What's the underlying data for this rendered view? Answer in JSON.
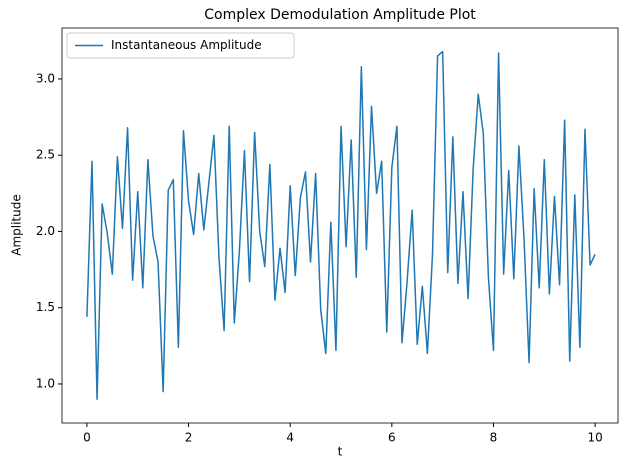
{
  "chart_data": {
    "type": "line",
    "title": "Complex Demodulation Amplitude Plot",
    "x_label": "t",
    "y_label": "Amplitude",
    "x": [
      0.0,
      0.1,
      0.2,
      0.3,
      0.4,
      0.5,
      0.6,
      0.7,
      0.8,
      0.9,
      1.0,
      1.1,
      1.2,
      1.3,
      1.4,
      1.5,
      1.6,
      1.7,
      1.8,
      1.9,
      2.0,
      2.1,
      2.2,
      2.3,
      2.4,
      2.5,
      2.6,
      2.7,
      2.8,
      2.9,
      3.0,
      3.1,
      3.2,
      3.3,
      3.4,
      3.5,
      3.6,
      3.7,
      3.8,
      3.9,
      4.0,
      4.1,
      4.2,
      4.3,
      4.4,
      4.5,
      4.6,
      4.7,
      4.8,
      4.9,
      5.0,
      5.1,
      5.2,
      5.3,
      5.4,
      5.5,
      5.6,
      5.7,
      5.8,
      5.9,
      6.0,
      6.1,
      6.2,
      6.3,
      6.4,
      6.5,
      6.6,
      6.7,
      6.8,
      6.9,
      7.0,
      7.1,
      7.2,
      7.3,
      7.4,
      7.5,
      7.6,
      7.7,
      7.8,
      7.9,
      8.0,
      8.1,
      8.2,
      8.3,
      8.4,
      8.5,
      8.6,
      8.7,
      8.8,
      8.9,
      9.0,
      9.1,
      9.2,
      9.3,
      9.4,
      9.5,
      9.6,
      9.7,
      9.8,
      9.9,
      10.0
    ],
    "series": [
      {
        "name": "Instantaneous Amplitude",
        "color": "#1f77b4",
        "values": [
          1.44,
          2.46,
          0.9,
          2.18,
          1.99,
          1.72,
          2.49,
          2.02,
          2.68,
          1.68,
          2.26,
          1.63,
          2.47,
          1.97,
          1.8,
          0.95,
          2.27,
          2.34,
          1.24,
          2.66,
          2.2,
          1.98,
          2.38,
          2.01,
          2.32,
          2.63,
          1.82,
          1.35,
          2.69,
          1.4,
          1.87,
          2.53,
          1.67,
          2.65,
          2.0,
          1.77,
          2.44,
          1.55,
          1.89,
          1.6,
          2.3,
          1.71,
          2.22,
          2.39,
          1.8,
          2.38,
          1.49,
          1.2,
          2.06,
          1.22,
          2.69,
          1.9,
          2.6,
          1.7,
          3.08,
          1.88,
          2.82,
          2.25,
          2.46,
          1.34,
          2.42,
          2.69,
          1.27,
          1.67,
          2.14,
          1.26,
          1.64,
          1.2,
          1.85,
          3.15,
          3.18,
          1.73,
          2.62,
          1.66,
          2.26,
          1.56,
          2.41,
          2.9,
          2.64,
          1.7,
          1.22,
          3.17,
          1.72,
          2.4,
          1.69,
          2.56,
          1.96,
          1.14,
          2.28,
          1.63,
          2.47,
          1.59,
          2.23,
          1.65,
          2.73,
          1.15,
          2.24,
          1.24,
          2.67,
          1.78,
          1.85
        ]
      }
    ],
    "xlim": [
      -0.49,
      10.45
    ],
    "ylim": [
      0.744,
      3.334
    ],
    "xticks": [
      0,
      2,
      4,
      6,
      8,
      10
    ],
    "yticks": [
      {
        "value": 1,
        "label": "1.0"
      },
      1.5,
      {
        "value": 2,
        "label": "2.0"
      },
      2.5,
      {
        "value": 3,
        "label": "3.0"
      }
    ],
    "grid": false,
    "legend": "upper left"
  }
}
